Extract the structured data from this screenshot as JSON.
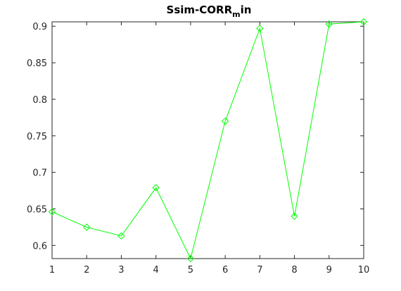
{
  "chart_data": {
    "type": "line",
    "title_main": "Ssim-CORR",
    "title_sub": "m",
    "title_tail": "in",
    "xlabel": "",
    "ylabel": "",
    "x": [
      1,
      2,
      3,
      4,
      5,
      6,
      7,
      8,
      9,
      10
    ],
    "x_ticks": [
      "1",
      "2",
      "3",
      "4",
      "5",
      "6",
      "7",
      "8",
      "9",
      "10"
    ],
    "y_ticks": [
      "0.6",
      "0.65",
      "0.7",
      "0.75",
      "0.8",
      "0.85",
      "0.9"
    ],
    "xlim": [
      1,
      10
    ],
    "ylim": [
      0.582,
      0.906
    ],
    "grid": false,
    "marker": "diamond",
    "series": [
      {
        "values": [
          0.646,
          0.625,
          0.613,
          0.679,
          0.582,
          0.77,
          0.897,
          0.64,
          0.903,
          0.906
        ],
        "color": "#00ff00"
      }
    ]
  }
}
